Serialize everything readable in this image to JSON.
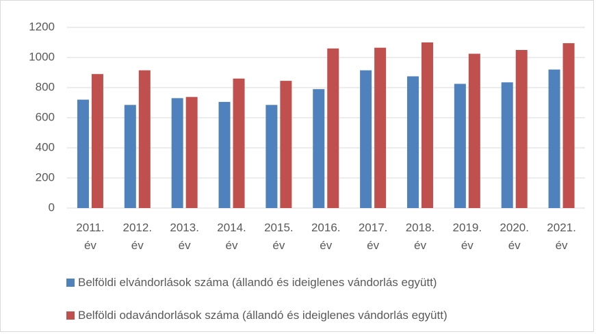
{
  "chart_data": {
    "type": "bar",
    "categories": [
      "2011. év",
      "2012. év",
      "2013. év",
      "2014. év",
      "2015. év",
      "2016. év",
      "2017. év",
      "2018. év",
      "2019. év",
      "2020. év",
      "2021. év"
    ],
    "series": [
      {
        "name": "Belföldi elvándorlások száma (állandó és ideiglenes vándorlás együtt)",
        "color": "#4f81bd",
        "values": [
          720,
          685,
          730,
          705,
          685,
          790,
          915,
          875,
          825,
          835,
          920
        ]
      },
      {
        "name": "Belföldi odavándorlások száma (állandó és ideiglenes vándorlás együtt)",
        "color": "#c0504d",
        "values": [
          890,
          915,
          738,
          860,
          845,
          1060,
          1065,
          1100,
          1025,
          1050,
          1095
        ]
      }
    ],
    "ylim": [
      0,
      1200
    ],
    "yticks": [
      0,
      200,
      400,
      600,
      800,
      1000,
      1200
    ],
    "grid": true
  }
}
